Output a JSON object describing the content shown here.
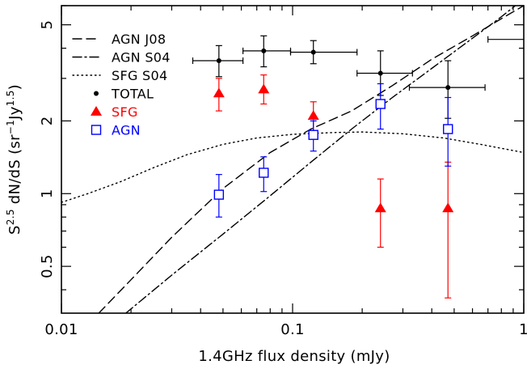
{
  "chart_data": {
    "type": "scatter",
    "xlabel": "1.4GHz flux density (mJy)",
    "ylabel": {
      "base": "S",
      "sup": "2.5",
      "mid": " dN/dS (sr",
      "sup2": "−1",
      "mid2": "Jy",
      "sup3": "1.5",
      "end": ")"
    },
    "xscale": "log",
    "yscale": "log",
    "xlim": [
      0.01,
      1
    ],
    "ylim": [
      0.32,
      6.0
    ],
    "xticks": [
      {
        "v": 0.01,
        "label": "0.01"
      },
      {
        "v": 0.1,
        "label": "0.1"
      },
      {
        "v": 1,
        "label": "1"
      }
    ],
    "yticks": [
      {
        "v": 0.5,
        "label": "0.5"
      },
      {
        "v": 1,
        "label": "1"
      },
      {
        "v": 2,
        "label": "2"
      },
      {
        "v": 5,
        "label": "5"
      }
    ],
    "legend_position": "top-left",
    "series": [
      {
        "name": "TOTAL",
        "marker": "dot",
        "color": "#000000",
        "points": [
          {
            "x": 0.048,
            "y": 3.55,
            "xerr": [
              0.037,
              0.061
            ],
            "yerr": [
              3.05,
              4.1
            ]
          },
          {
            "x": 0.075,
            "y": 3.9,
            "xerr": [
              0.061,
              0.098
            ],
            "yerr": [
              3.35,
              4.5
            ]
          },
          {
            "x": 0.123,
            "y": 3.85,
            "xerr": [
              0.098,
              0.19
            ],
            "yerr": [
              3.45,
              4.3
            ]
          },
          {
            "x": 0.24,
            "y": 3.15,
            "xerr": [
              0.19,
              0.33
            ],
            "yerr": [
              2.55,
              3.9
            ]
          },
          {
            "x": 0.47,
            "y": 2.75,
            "xerr": [
              0.32,
              0.68
            ],
            "yerr": [
              2.05,
              3.55
            ]
          }
        ]
      },
      {
        "name": "SFG",
        "marker": "triangle",
        "color": "#ff0000",
        "points": [
          {
            "x": 0.048,
            "y": 2.6,
            "yerr": [
              2.2,
              3.0
            ]
          },
          {
            "x": 0.075,
            "y": 2.7,
            "yerr": [
              2.35,
              3.1
            ]
          },
          {
            "x": 0.123,
            "y": 2.1,
            "yerr": [
              1.8,
              2.4
            ]
          },
          {
            "x": 0.24,
            "y": 0.87,
            "yerr": [
              0.6,
              1.15
            ]
          },
          {
            "x": 0.47,
            "y": 0.87,
            "yerr": [
              0.37,
              1.35
            ]
          }
        ]
      },
      {
        "name": "AGN",
        "marker": "square",
        "color": "#0000ff",
        "points": [
          {
            "x": 0.048,
            "y": 0.99,
            "yerr": [
              0.8,
              1.2
            ]
          },
          {
            "x": 0.075,
            "y": 1.22,
            "yerr": [
              1.02,
              1.42
            ]
          },
          {
            "x": 0.123,
            "y": 1.75,
            "yerr": [
              1.5,
              2.0
            ]
          },
          {
            "x": 0.24,
            "y": 2.35,
            "yerr": [
              1.85,
              2.85
            ]
          },
          {
            "x": 0.47,
            "y": 1.85,
            "yerr": [
              1.3,
              2.5
            ]
          }
        ]
      },
      {
        "name": "AGN J08",
        "style": "dashed",
        "color": "#000000",
        "points": [
          [
            0.0145,
            0.32
          ],
          [
            0.02,
            0.44
          ],
          [
            0.03,
            0.66
          ],
          [
            0.05,
            1.05
          ],
          [
            0.08,
            1.48
          ],
          [
            0.12,
            1.85
          ],
          [
            0.18,
            2.2
          ],
          [
            0.27,
            2.8
          ],
          [
            0.4,
            3.6
          ],
          [
            0.6,
            4.5
          ],
          [
            0.8,
            5.3
          ],
          [
            1.0,
            6.0
          ]
        ]
      },
      {
        "name": "AGN S04",
        "style": "dashdot",
        "color": "#000000",
        "points": [
          [
            0.019,
            0.32
          ],
          [
            0.03,
            0.46
          ],
          [
            0.05,
            0.68
          ],
          [
            0.08,
            0.98
          ],
          [
            0.12,
            1.35
          ],
          [
            0.18,
            1.85
          ],
          [
            0.27,
            2.5
          ],
          [
            0.4,
            3.3
          ],
          [
            0.6,
            4.4
          ],
          [
            0.8,
            5.4
          ],
          [
            0.92,
            6.0
          ]
        ]
      },
      {
        "name": "SFG S04",
        "style": "dotted",
        "color": "#000000",
        "points": [
          [
            0.01,
            0.92
          ],
          [
            0.013,
            1.0
          ],
          [
            0.018,
            1.12
          ],
          [
            0.025,
            1.28
          ],
          [
            0.035,
            1.45
          ],
          [
            0.05,
            1.6
          ],
          [
            0.07,
            1.7
          ],
          [
            0.1,
            1.76
          ],
          [
            0.15,
            1.79
          ],
          [
            0.2,
            1.8
          ],
          [
            0.3,
            1.77
          ],
          [
            0.45,
            1.7
          ],
          [
            0.65,
            1.6
          ],
          [
            1.0,
            1.48
          ]
        ]
      }
    ],
    "legend": [
      {
        "label": "AGN J08",
        "kind": "dashed",
        "color": "#000000"
      },
      {
        "label": "AGN S04",
        "kind": "dashdot",
        "color": "#000000"
      },
      {
        "label": "SFG S04",
        "kind": "dotted",
        "color": "#000000"
      },
      {
        "label": "TOTAL",
        "kind": "dot",
        "color": "#000000"
      },
      {
        "label": "SFG",
        "kind": "triangle",
        "color": "#ff0000"
      },
      {
        "label": "AGN",
        "kind": "square",
        "color": "#0000ff"
      }
    ],
    "annotations": [
      {
        "kind": "horizontal-bar",
        "x": [
          0.7,
          1.0
        ],
        "y": 4.35,
        "color": "#000000"
      }
    ]
  }
}
